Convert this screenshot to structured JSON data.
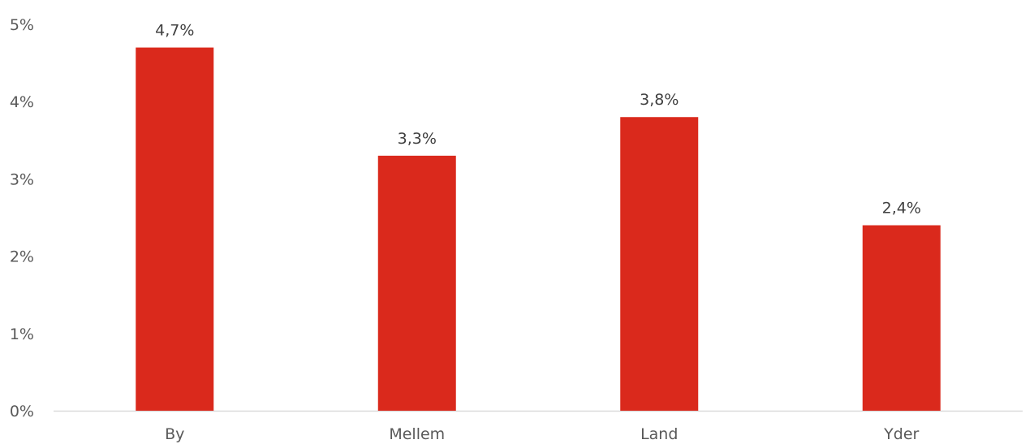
{
  "chart_data": {
    "type": "bar",
    "title": "",
    "xlabel": "",
    "ylabel": "",
    "categories": [
      "By",
      "Mellem",
      "Land",
      "Yder"
    ],
    "values": [
      4.7,
      3.3,
      3.8,
      2.4
    ],
    "data_labels": [
      "4,7%",
      "3,3%",
      "3,8%",
      "2,4%"
    ],
    "ylim": [
      0,
      5
    ],
    "yticks": [
      0,
      1,
      2,
      3,
      4,
      5
    ],
    "ytick_labels": [
      "0%",
      "1%",
      "2%",
      "3%",
      "4%",
      "5%"
    ],
    "grid": false,
    "legend": "none",
    "colors": {
      "bar": "#DA291C",
      "axis": "#D9D9D9",
      "text": "#595959"
    }
  }
}
